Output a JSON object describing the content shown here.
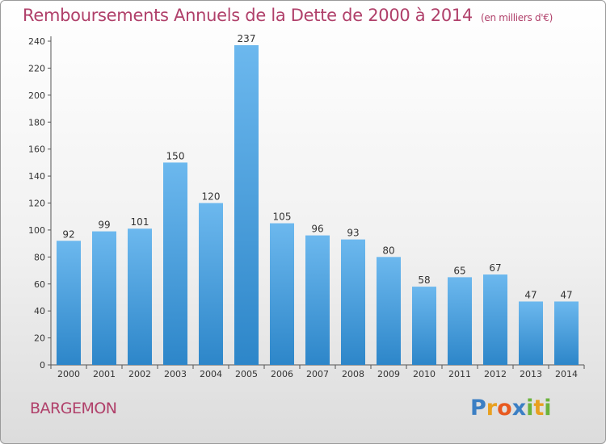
{
  "title": "Remboursements Annuels de la Dette de 2000 à 2014",
  "unit": "(en milliers d'€)",
  "commune": "BARGEMON",
  "logo": {
    "letters": [
      "P",
      "r",
      "o",
      "x",
      "i",
      "t",
      "i"
    ],
    "colors": [
      "#3b7fc4",
      "#e8a020",
      "#e85a20",
      "#3b7fc4",
      "#6bb33b",
      "#e8a020",
      "#6bb33b"
    ]
  },
  "colors": {
    "bar_top": "#6cb8ee",
    "bar_bottom": "#2d86c9",
    "title": "#b0406a"
  },
  "chart_data": {
    "type": "bar",
    "title": "Remboursements Annuels de la Dette de 2000 à 2014",
    "categories": [
      "2000",
      "2001",
      "2002",
      "2003",
      "2004",
      "2005",
      "2006",
      "2007",
      "2008",
      "2009",
      "2010",
      "2011",
      "2012",
      "2013",
      "2014"
    ],
    "values": [
      92,
      99,
      101,
      150,
      120,
      237,
      105,
      96,
      93,
      80,
      58,
      65,
      67,
      47,
      47
    ],
    "ylim": [
      0,
      240
    ],
    "yticks": [
      0,
      20,
      40,
      60,
      80,
      100,
      120,
      140,
      160,
      180,
      200,
      220,
      240
    ],
    "grid": false,
    "legend": "none"
  }
}
